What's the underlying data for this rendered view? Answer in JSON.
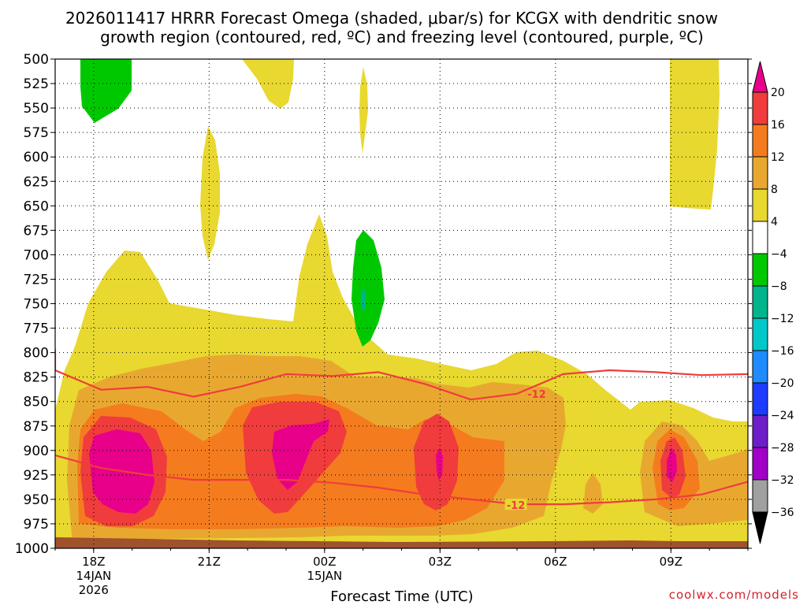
{
  "chart_data": {
    "type": "contourf",
    "title_line1": "2026011417 HRRR Forecast Omega (shaded, μbar/s) for KCGX with dendritic snow",
    "title_line2": "growth region (contoured, red, ºC) and freezing level (contoured, purple, ºC)",
    "xlabel": "Forecast Time (UTC)",
    "ylabel": "",
    "ylim": [
      1000,
      500
    ],
    "y_ticks": [
      "500",
      "525",
      "550",
      "575",
      "600",
      "625",
      "650",
      "675",
      "700",
      "725",
      "750",
      "775",
      "800",
      "825",
      "850",
      "875",
      "900",
      "925",
      "950",
      "975",
      "1000"
    ],
    "x_ticks": [
      {
        "label": "18Z",
        "sub1": "14JAN",
        "sub2": "2026"
      },
      {
        "label": "21Z",
        "sub1": "",
        "sub2": ""
      },
      {
        "label": "00Z",
        "sub1": "15JAN",
        "sub2": ""
      },
      {
        "label": "03Z",
        "sub1": "",
        "sub2": ""
      },
      {
        "label": "06Z",
        "sub1": "",
        "sub2": ""
      },
      {
        "label": "09Z",
        "sub1": "",
        "sub2": ""
      }
    ],
    "x_range_hours": [
      -1,
      17
    ],
    "colorbar": {
      "labels": [
        "20",
        "16",
        "12",
        "8",
        "4",
        "-4",
        "-8",
        "-12",
        "-16",
        "-20",
        "-24",
        "-28",
        "-32",
        "-36"
      ],
      "colors": [
        "#e8008a",
        "#f03c3c",
        "#f47c1e",
        "#e8a830",
        "#e8d830",
        "#ffffff",
        "#00c800",
        "#00b48c",
        "#00c8c8",
        "#1e8cff",
        "#1e3cff",
        "#6e1ec8",
        "#a000c8",
        "#a0a0a0"
      ],
      "over_color": "#e8008a",
      "under_color": "#000000"
    },
    "isotherms": [
      {
        "label": "-12",
        "pressures": [
          818,
          838,
          835,
          845,
          835,
          822,
          824,
          820,
          832,
          848,
          842,
          822,
          818,
          820,
          823,
          822
        ]
      },
      {
        "label": "",
        "pressures": [
          905,
          918,
          925,
          930,
          930,
          930,
          933,
          938,
          945,
          950,
          955,
          955,
          953,
          950,
          945,
          932
        ]
      }
    ],
    "terrain_color": "#a0522d",
    "credit": "coolwx.com/models"
  }
}
